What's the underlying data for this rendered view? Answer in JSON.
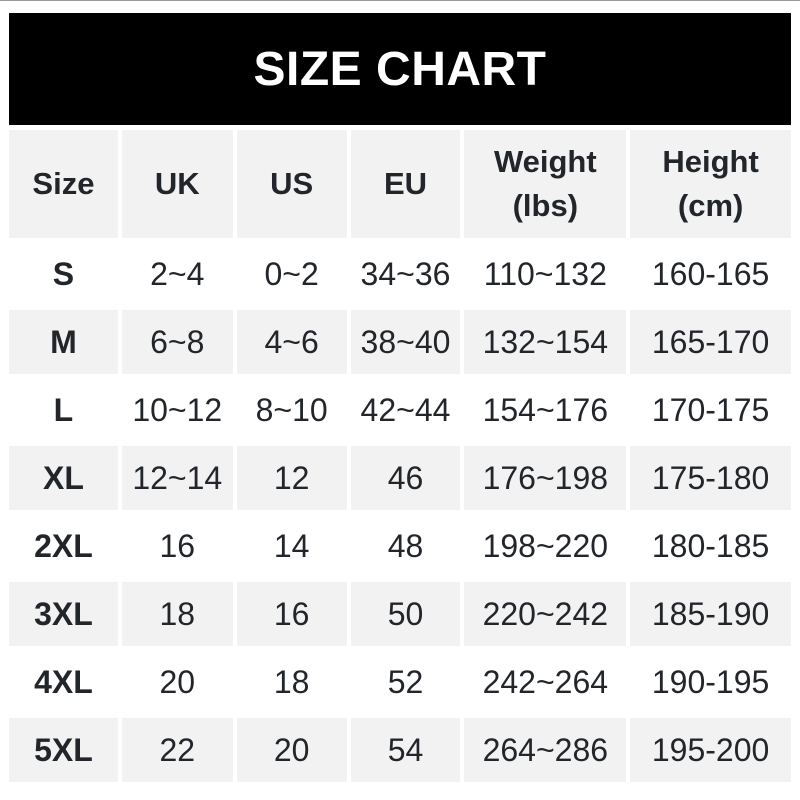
{
  "banner": {
    "title": "SIZE CHART"
  },
  "colors": {
    "banner_bg": "#000000",
    "banner_text": "#ffffff",
    "header_row_bg": "#f2f2f2",
    "alt_row_bg": "#f2f2f2",
    "row_bg": "#ffffff",
    "text": "#22262b",
    "page_bg": "#ffffff"
  },
  "table": {
    "columns": [
      {
        "label": "Size",
        "sub": ""
      },
      {
        "label": "UK",
        "sub": ""
      },
      {
        "label": "US",
        "sub": ""
      },
      {
        "label": "EU",
        "sub": ""
      },
      {
        "label": "Weight",
        "sub": "(lbs)"
      },
      {
        "label": "Height",
        "sub": "(cm)"
      }
    ]
  },
  "chart_data": {
    "type": "table",
    "title": "SIZE CHART",
    "columns": [
      "Size",
      "UK",
      "US",
      "EU",
      "Weight (lbs)",
      "Height (cm)"
    ],
    "rows": [
      [
        "S",
        "2~4",
        "0~2",
        "34~36",
        "110~132",
        "160-165"
      ],
      [
        "M",
        "6~8",
        "4~6",
        "38~40",
        "132~154",
        "165-170"
      ],
      [
        "L",
        "10~12",
        "8~10",
        "42~44",
        "154~176",
        "170-175"
      ],
      [
        "XL",
        "12~14",
        "12",
        "46",
        "176~198",
        "175-180"
      ],
      [
        "2XL",
        "16",
        "14",
        "48",
        "198~220",
        "180-185"
      ],
      [
        "3XL",
        "18",
        "16",
        "50",
        "220~242",
        "185-190"
      ],
      [
        "4XL",
        "20",
        "18",
        "52",
        "242~264",
        "190-195"
      ],
      [
        "5XL",
        "22",
        "20",
        "54",
        "264~286",
        "195-200"
      ]
    ]
  }
}
